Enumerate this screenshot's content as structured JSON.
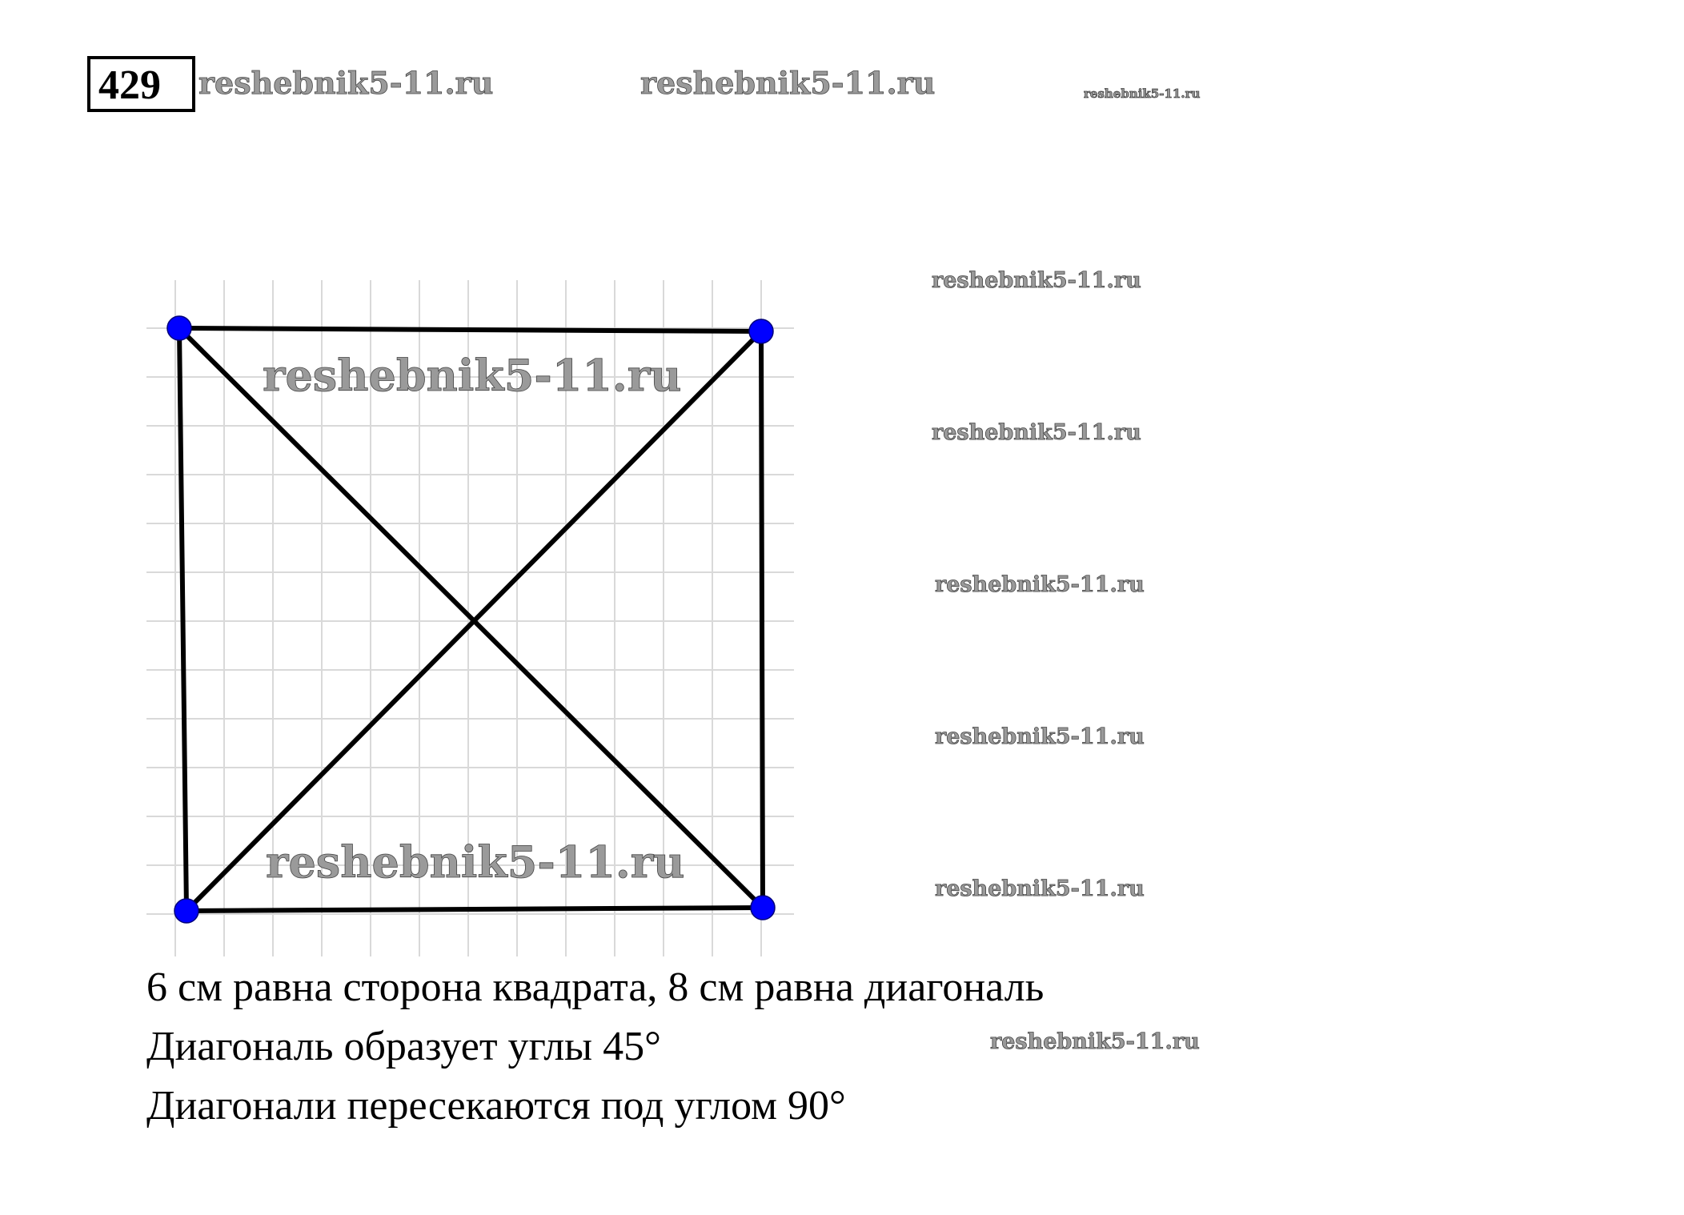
{
  "header": {
    "problem_number": "429"
  },
  "watermarks": {
    "text": "reshebnik5-11.ru"
  },
  "figure": {
    "shape": "square with both diagonals on grid paper",
    "vertex_color": "#0000ff",
    "line_color": "#000000",
    "grid_color": "#d9d9d9"
  },
  "answer": {
    "lines": [
      "6 см равна сторона квадрата, 8 см равна диагональ",
      "Диагональ образует углы 45°",
      "Диагонали пересекаются под углом 90°"
    ]
  }
}
